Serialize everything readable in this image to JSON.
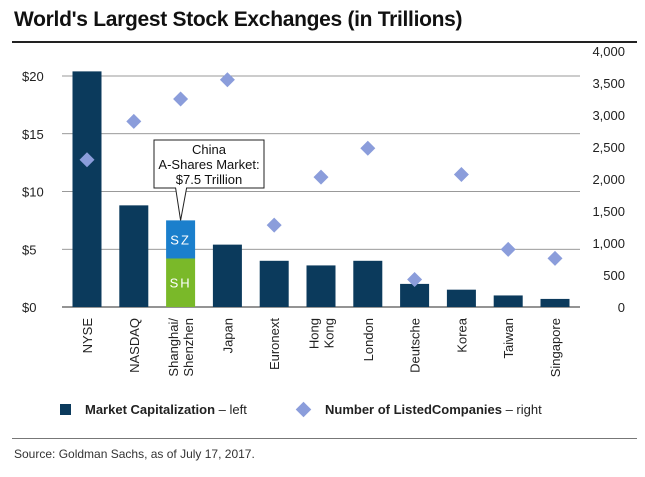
{
  "title": "World's Largest Stock Exchanges (in Trillions)",
  "source": "Source: Goldman Sachs, as of July 17, 2017.",
  "legend": {
    "bar_label": "Market Capitalization",
    "bar_suffix": " – left",
    "diamond_label": "Number of ListedCompanies",
    "diamond_suffix": " – right"
  },
  "callout": {
    "lines": [
      "China",
      "A-Shares Market:",
      "$7.5 Trillion"
    ]
  },
  "colors": {
    "bar": "#0b3a5c",
    "sz": "#1b7fcc",
    "sh": "#7ab929",
    "diamond": "#8b9ddb"
  },
  "chart_data": {
    "type": "bar",
    "categories": [
      "NYSE",
      "NASDAQ",
      "Shanghai/ Shenzhen",
      "Japan",
      "Euronext",
      "Hong Kong",
      "London",
      "Deutsche",
      "Korea",
      "Taiwan",
      "Singapore"
    ],
    "series": [
      {
        "name": "Market Capitalization",
        "axis": "left",
        "values": [
          20.4,
          8.8,
          7.5,
          5.4,
          4.0,
          3.6,
          4.0,
          2.0,
          1.5,
          1.0,
          0.7
        ]
      },
      {
        "name": "Number of ListedCompanies",
        "axis": "right",
        "type": "scatter",
        "values": [
          2300,
          2900,
          3250,
          3550,
          1280,
          2030,
          2480,
          430,
          2070,
          900,
          760
        ]
      }
    ],
    "stacked_segments": {
      "category": "Shanghai/ Shenzhen",
      "segments": [
        {
          "label": "SH",
          "value": 4.2
        },
        {
          "label": "SZ",
          "value": 3.3
        }
      ]
    },
    "left_axis": {
      "ticks": [
        0,
        5,
        10,
        15,
        20
      ],
      "tick_labels": [
        "$0",
        "$5",
        "$10",
        "$15",
        "$20"
      ],
      "range": [
        0,
        22
      ]
    },
    "right_axis": {
      "ticks": [
        0,
        500,
        1000,
        1500,
        2000,
        2500,
        3000,
        3500,
        4000
      ],
      "tick_labels": [
        "0",
        "500",
        "1,000",
        "1,500",
        "2,000",
        "2,500",
        "3,000",
        "3,500",
        "4,000"
      ],
      "range": [
        0,
        4000
      ]
    },
    "grid": true,
    "legend_position": "bottom"
  }
}
